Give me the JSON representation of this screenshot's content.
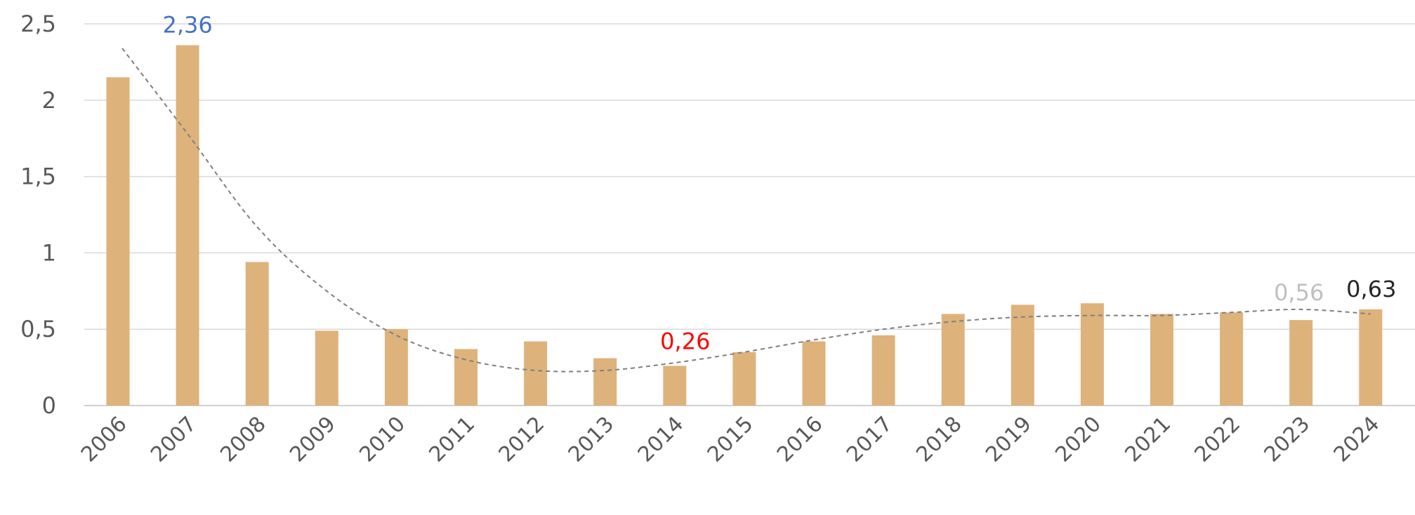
{
  "chart_data": {
    "type": "bar",
    "categories": [
      "2006",
      "2007",
      "2008",
      "2009",
      "2010",
      "2011",
      "2012",
      "2013",
      "2014",
      "2015",
      "2016",
      "2017",
      "2018",
      "2019",
      "2020",
      "2021",
      "2022",
      "2023",
      "2024"
    ],
    "series": [
      {
        "values": [
          2.15,
          2.36,
          0.94,
          0.49,
          0.5,
          0.37,
          0.42,
          0.31,
          0.26,
          0.35,
          0.42,
          0.46,
          0.6,
          0.66,
          0.67,
          0.6,
          0.61,
          0.56,
          0.63
        ]
      }
    ],
    "trendline": {
      "type": "polynomial",
      "style": "dashed"
    },
    "y_ticks": [
      "0",
      "0,5",
      "1",
      "1,5",
      "2",
      "2,5"
    ],
    "ylim": [
      0,
      2.5
    ],
    "grid": true,
    "legend": "none",
    "annotations": [
      {
        "category": "2007",
        "text": "2,36",
        "color": "#4472c4"
      },
      {
        "category": "2014",
        "text": "0,26",
        "color": "#ff0000"
      },
      {
        "category": "2023",
        "text": "0,56",
        "color": "#bfbfbf"
      },
      {
        "category": "2024",
        "text": "0,63",
        "color": "#262626"
      }
    ],
    "colors": {
      "bar": "#deb27b",
      "trendline": "#7f7f7f",
      "grid": "#d9d9d9"
    }
  }
}
